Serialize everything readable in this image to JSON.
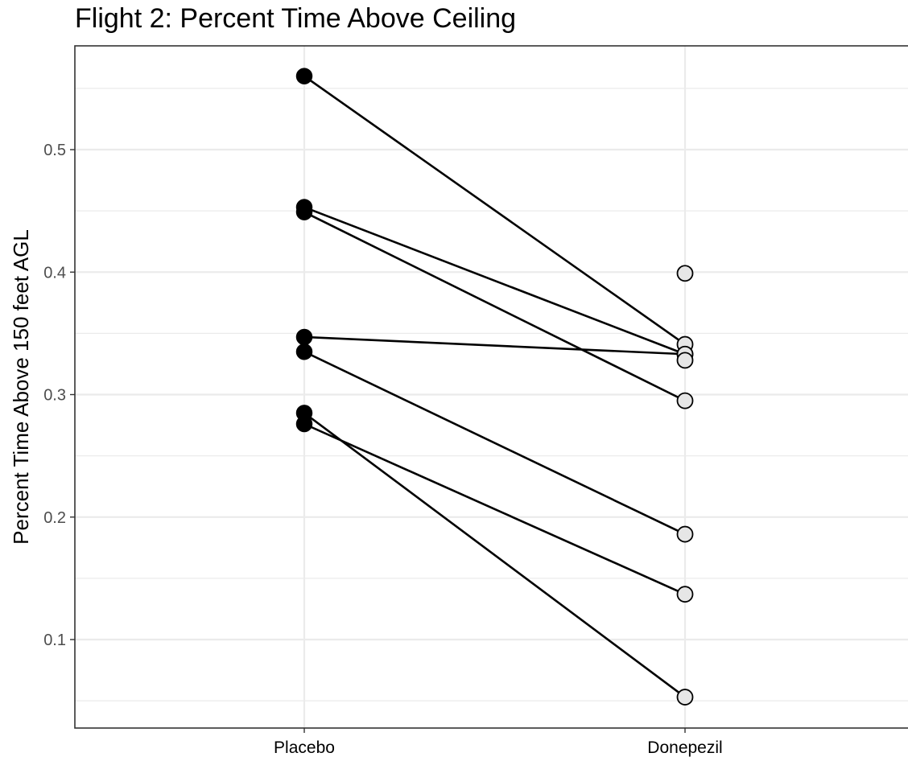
{
  "chart_data": {
    "type": "line",
    "title": "Flight 2: Percent Time Above Ceiling",
    "xlabel": "",
    "ylabel": "Percent Time Above 150 feet AGL",
    "categories": [
      "Placebo",
      "Donepezil"
    ],
    "yticks": [
      "0.1",
      "0.2",
      "0.3",
      "0.4",
      "0.5"
    ],
    "ylim": [
      0.03,
      0.59
    ],
    "grid": true,
    "colors": {
      "placebo_point": "#000000",
      "donepezil_point": "#e6e6e6",
      "line": "#000000",
      "grid": "#ebebeb",
      "panel_border": "#333333"
    },
    "series": [
      {
        "values": [
          0.56,
          0.341
        ]
      },
      {
        "values": [
          0.453,
          0.333
        ]
      },
      {
        "values": [
          0.449,
          0.295
        ]
      },
      {
        "values": [
          0.347,
          0.333
        ]
      },
      {
        "values": [
          0.335,
          0.186
        ]
      },
      {
        "values": [
          0.285,
          0.053
        ]
      },
      {
        "values": [
          0.276,
          0.137
        ]
      }
    ],
    "unpaired_points": [
      {
        "category": "Donepezil",
        "value": 0.399
      },
      {
        "category": "Donepezil",
        "value": 0.328
      }
    ]
  }
}
